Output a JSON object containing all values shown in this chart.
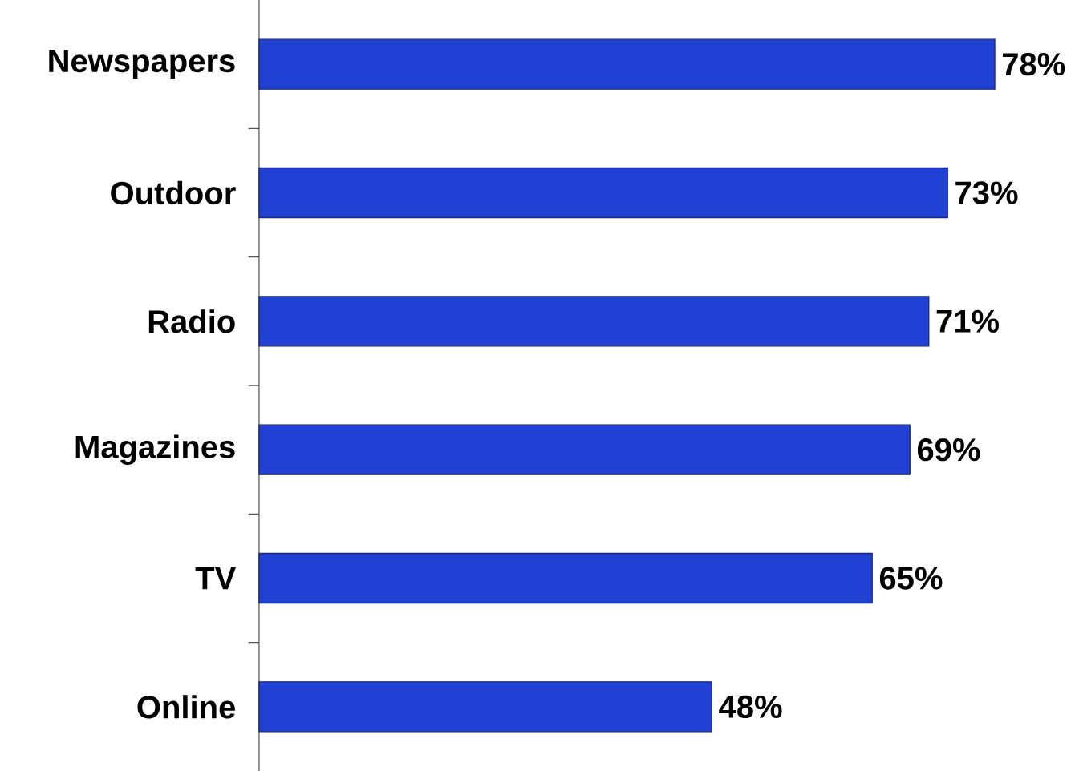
{
  "chart_data": {
    "type": "bar",
    "orientation": "horizontal",
    "categories": [
      "Newspapers",
      "Outdoor",
      "Radio",
      "Magazines",
      "TV",
      "Online"
    ],
    "values": [
      78,
      73,
      71,
      69,
      65,
      48
    ],
    "value_labels": [
      "78%",
      "73%",
      "71%",
      "69%",
      "65%",
      "48%"
    ],
    "color": "#2141d4"
  }
}
